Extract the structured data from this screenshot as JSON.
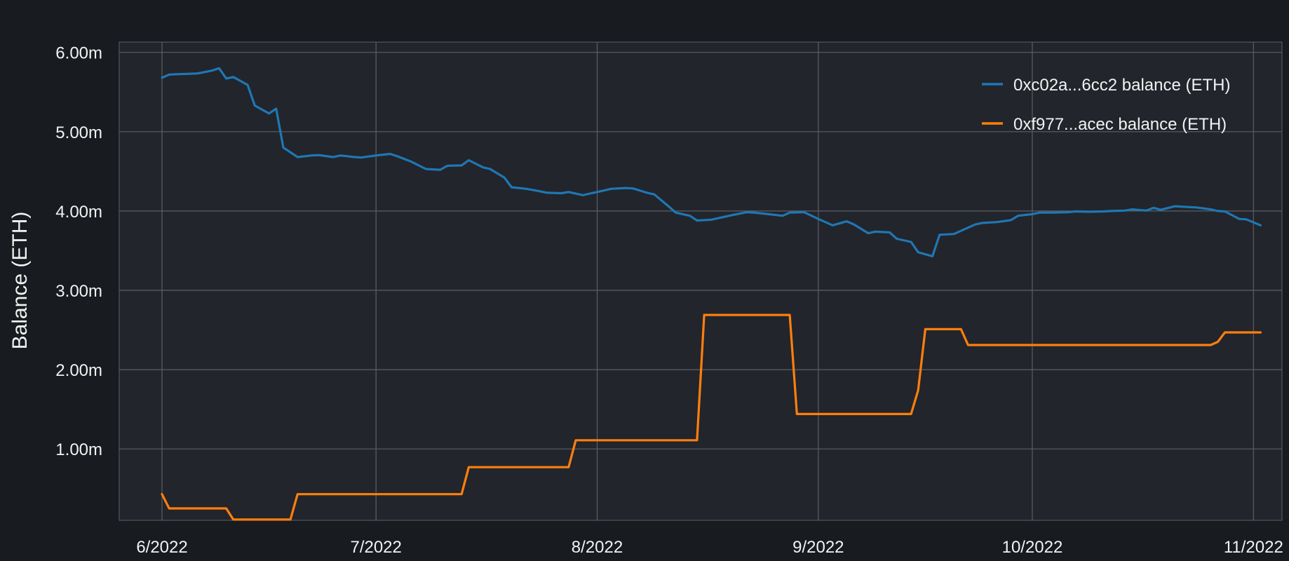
{
  "colors": {
    "page_bg": "#181b1f",
    "plot_bg": "#22252b",
    "grid": "#5c5f64",
    "text": "#f2f2f2",
    "series1": "#1f77b4",
    "series2": "#ff7f0e"
  },
  "chart_data": {
    "type": "line",
    "title": "",
    "xlabel": "",
    "ylabel": "Balance (ETH)",
    "grid": true,
    "legend_position": "top-right",
    "x_is_date": true,
    "xlim": [
      "2022-05-26",
      "2022-11-05"
    ],
    "ylim": [
      100000,
      6130000
    ],
    "x_ticks": [
      {
        "date": "2022-06-01",
        "label": "6/2022"
      },
      {
        "date": "2022-07-01",
        "label": "7/2022"
      },
      {
        "date": "2022-08-01",
        "label": "8/2022"
      },
      {
        "date": "2022-09-01",
        "label": "9/2022"
      },
      {
        "date": "2022-10-01",
        "label": "10/2022"
      },
      {
        "date": "2022-11-01",
        "label": "11/2022"
      }
    ],
    "y_ticks": [
      {
        "value": 1000000,
        "label": "1.00m"
      },
      {
        "value": 2000000,
        "label": "2.00m"
      },
      {
        "value": 3000000,
        "label": "3.00m"
      },
      {
        "value": 4000000,
        "label": "4.00m"
      },
      {
        "value": 5000000,
        "label": "5.00m"
      },
      {
        "value": 6000000,
        "label": "6.00m"
      }
    ],
    "series": [
      {
        "name": "0xc02a...6cc2 balance (ETH)",
        "color": "#1f77b4",
        "points": [
          [
            "2022-06-01",
            5680000
          ],
          [
            "2022-06-02",
            5720000
          ],
          [
            "2022-06-03",
            5725000
          ],
          [
            "2022-06-05",
            5730000
          ],
          [
            "2022-06-06",
            5735000
          ],
          [
            "2022-06-08",
            5770000
          ],
          [
            "2022-06-09",
            5800000
          ],
          [
            "2022-06-10",
            5670000
          ],
          [
            "2022-06-11",
            5690000
          ],
          [
            "2022-06-13",
            5590000
          ],
          [
            "2022-06-14",
            5330000
          ],
          [
            "2022-06-16",
            5230000
          ],
          [
            "2022-06-17",
            5290000
          ],
          [
            "2022-06-18",
            4800000
          ],
          [
            "2022-06-20",
            4680000
          ],
          [
            "2022-06-22",
            4700000
          ],
          [
            "2022-06-23",
            4705000
          ],
          [
            "2022-06-25",
            4680000
          ],
          [
            "2022-06-26",
            4700000
          ],
          [
            "2022-06-28",
            4680000
          ],
          [
            "2022-06-29",
            4675000
          ],
          [
            "2022-07-01",
            4700000
          ],
          [
            "2022-07-03",
            4720000
          ],
          [
            "2022-07-04",
            4690000
          ],
          [
            "2022-07-06",
            4620000
          ],
          [
            "2022-07-08",
            4530000
          ],
          [
            "2022-07-10",
            4520000
          ],
          [
            "2022-07-11",
            4570000
          ],
          [
            "2022-07-13",
            4575000
          ],
          [
            "2022-07-14",
            4640000
          ],
          [
            "2022-07-16",
            4550000
          ],
          [
            "2022-07-17",
            4530000
          ],
          [
            "2022-07-19",
            4420000
          ],
          [
            "2022-07-20",
            4300000
          ],
          [
            "2022-07-22",
            4280000
          ],
          [
            "2022-07-23",
            4265000
          ],
          [
            "2022-07-25",
            4230000
          ],
          [
            "2022-07-27",
            4225000
          ],
          [
            "2022-07-28",
            4240000
          ],
          [
            "2022-07-30",
            4200000
          ],
          [
            "2022-07-31",
            4220000
          ],
          [
            "2022-08-01",
            4240000
          ],
          [
            "2022-08-03",
            4280000
          ],
          [
            "2022-08-05",
            4290000
          ],
          [
            "2022-08-06",
            4285000
          ],
          [
            "2022-08-08",
            4230000
          ],
          [
            "2022-08-09",
            4210000
          ],
          [
            "2022-08-11",
            4060000
          ],
          [
            "2022-08-12",
            3980000
          ],
          [
            "2022-08-14",
            3940000
          ],
          [
            "2022-08-15",
            3880000
          ],
          [
            "2022-08-17",
            3890000
          ],
          [
            "2022-08-19",
            3930000
          ],
          [
            "2022-08-20",
            3950000
          ],
          [
            "2022-08-22",
            3985000
          ],
          [
            "2022-08-23",
            3980000
          ],
          [
            "2022-08-25",
            3960000
          ],
          [
            "2022-08-27",
            3940000
          ],
          [
            "2022-08-28",
            3980000
          ],
          [
            "2022-08-30",
            3985000
          ],
          [
            "2022-09-01",
            3900000
          ],
          [
            "2022-09-02",
            3860000
          ],
          [
            "2022-09-03",
            3820000
          ],
          [
            "2022-09-05",
            3870000
          ],
          [
            "2022-09-06",
            3830000
          ],
          [
            "2022-09-08",
            3720000
          ],
          [
            "2022-09-09",
            3740000
          ],
          [
            "2022-09-11",
            3730000
          ],
          [
            "2022-09-12",
            3650000
          ],
          [
            "2022-09-14",
            3610000
          ],
          [
            "2022-09-15",
            3480000
          ],
          [
            "2022-09-17",
            3430000
          ],
          [
            "2022-09-18",
            3700000
          ],
          [
            "2022-09-20",
            3710000
          ],
          [
            "2022-09-21",
            3750000
          ],
          [
            "2022-09-23",
            3830000
          ],
          [
            "2022-09-24",
            3850000
          ],
          [
            "2022-09-26",
            3860000
          ],
          [
            "2022-09-28",
            3885000
          ],
          [
            "2022-09-29",
            3940000
          ],
          [
            "2022-10-01",
            3960000
          ],
          [
            "2022-10-02",
            3980000
          ],
          [
            "2022-10-04",
            3980000
          ],
          [
            "2022-10-06",
            3985000
          ],
          [
            "2022-10-07",
            3995000
          ],
          [
            "2022-10-09",
            3990000
          ],
          [
            "2022-10-11",
            3995000
          ],
          [
            "2022-10-12",
            4000000
          ],
          [
            "2022-10-14",
            4005000
          ],
          [
            "2022-10-15",
            4020000
          ],
          [
            "2022-10-17",
            4005000
          ],
          [
            "2022-10-18",
            4040000
          ],
          [
            "2022-10-19",
            4015000
          ],
          [
            "2022-10-21",
            4060000
          ],
          [
            "2022-10-23",
            4050000
          ],
          [
            "2022-10-24",
            4045000
          ],
          [
            "2022-10-26",
            4020000
          ],
          [
            "2022-10-27",
            4000000
          ],
          [
            "2022-10-28",
            3995000
          ],
          [
            "2022-10-30",
            3900000
          ],
          [
            "2022-10-31",
            3895000
          ],
          [
            "2022-11-02",
            3820000
          ]
        ]
      },
      {
        "name": "0xf977...acec balance (ETH)",
        "color": "#ff7f0e",
        "points": [
          [
            "2022-06-01",
            430000
          ],
          [
            "2022-06-02",
            250000
          ],
          [
            "2022-06-10",
            250000
          ],
          [
            "2022-06-11",
            110000
          ],
          [
            "2022-06-19",
            110000
          ],
          [
            "2022-06-20",
            430000
          ],
          [
            "2022-07-13",
            430000
          ],
          [
            "2022-07-14",
            770000
          ],
          [
            "2022-07-28",
            770000
          ],
          [
            "2022-07-29",
            1110000
          ],
          [
            "2022-08-15",
            1110000
          ],
          [
            "2022-08-16",
            2690000
          ],
          [
            "2022-08-28",
            2690000
          ],
          [
            "2022-08-29",
            1440000
          ],
          [
            "2022-09-14",
            1440000
          ],
          [
            "2022-09-15",
            1740000
          ],
          [
            "2022-09-16",
            2510000
          ],
          [
            "2022-09-21",
            2510000
          ],
          [
            "2022-09-22",
            2310000
          ],
          [
            "2022-10-26",
            2310000
          ],
          [
            "2022-10-27",
            2350000
          ],
          [
            "2022-10-28",
            2470000
          ],
          [
            "2022-11-02",
            2470000
          ]
        ]
      }
    ]
  }
}
